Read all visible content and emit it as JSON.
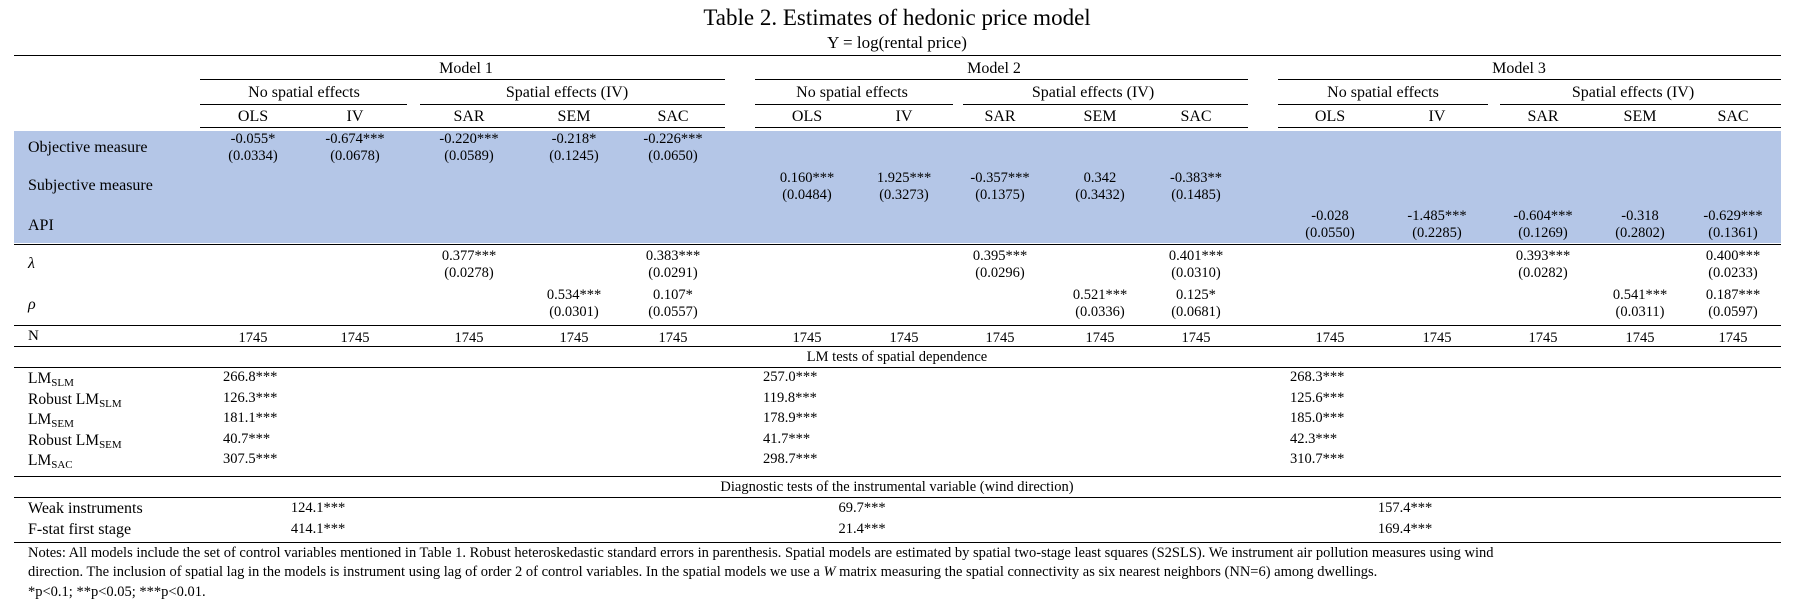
{
  "title": "Table 2. Estimates of hedonic price model",
  "subtitle": "Y = log(rental price)",
  "models": [
    {
      "name": "Model 1",
      "groups": [
        "No spatial effects",
        "Spatial effects (IV)"
      ]
    },
    {
      "name": "Model 2",
      "groups": [
        "No spatial effects",
        "Spatial effects (IV)"
      ]
    },
    {
      "name": "Model 3",
      "groups": [
        "No spatial effects",
        "Spatial effects (IV)"
      ]
    }
  ],
  "methods": [
    "OLS",
    "IV",
    "SAR",
    "SEM",
    "SAC",
    "OLS",
    "IV",
    "SAR",
    "SEM",
    "SAC",
    "OLS",
    "IV",
    "SAR",
    "SEM",
    "SAC"
  ],
  "rows": [
    {
      "label": "Objective measure",
      "cells": [
        [
          "-0.055*",
          "(0.0334)"
        ],
        [
          "-0.674***",
          "(0.0678)"
        ],
        [
          "-0.220***",
          "(0.0589)"
        ],
        [
          "-0.218*",
          "(0.1245)"
        ],
        [
          "-0.226***",
          "(0.0650)"
        ],
        null,
        null,
        null,
        null,
        null,
        null,
        null,
        null,
        null,
        null
      ]
    },
    {
      "label": "Subjective measure",
      "cells": [
        null,
        null,
        null,
        null,
        null,
        [
          "0.160***",
          "(0.0484)"
        ],
        [
          "1.925***",
          "(0.3273)"
        ],
        [
          "-0.357***",
          "(0.1375)"
        ],
        [
          "0.342",
          "(0.3432)"
        ],
        [
          "-0.383**",
          "(0.1485)"
        ],
        null,
        null,
        null,
        null,
        null
      ]
    },
    {
      "label": "API",
      "cells": [
        null,
        null,
        null,
        null,
        null,
        null,
        null,
        null,
        null,
        null,
        [
          "-0.028",
          "(0.0550)"
        ],
        [
          "-1.485***",
          "(0.2285)"
        ],
        [
          "-0.604***",
          "(0.1269)"
        ],
        [
          "-0.318",
          "(0.2802)"
        ],
        [
          "-0.629***",
          "(0.1361)"
        ]
      ]
    },
    {
      "label": "λ",
      "cells": [
        null,
        null,
        [
          "0.377***",
          "(0.0278)"
        ],
        null,
        [
          "0.383***",
          "(0.0291)"
        ],
        null,
        null,
        [
          "0.395***",
          "(0.0296)"
        ],
        null,
        [
          "0.401***",
          "(0.0310)"
        ],
        null,
        null,
        [
          "0.393***",
          "(0.0282)"
        ],
        null,
        [
          "0.400***",
          "(0.0233)"
        ]
      ]
    },
    {
      "label": "ρ",
      "cells": [
        null,
        null,
        null,
        [
          "0.534***",
          "(0.0301)"
        ],
        [
          "0.107*",
          "(0.0557)"
        ],
        null,
        null,
        null,
        [
          "0.521***",
          "(0.0336)"
        ],
        [
          "0.125*",
          "(0.0681)"
        ],
        null,
        null,
        null,
        [
          "0.541***",
          "(0.0311)"
        ],
        [
          "0.187***",
          "(0.0597)"
        ]
      ]
    }
  ],
  "n_row": {
    "label": "N",
    "values": [
      "1745",
      "1745",
      "1745",
      "1745",
      "1745",
      "1745",
      "1745",
      "1745",
      "1745",
      "1745",
      "1745",
      "1745",
      "1745",
      "1745",
      "1745"
    ]
  },
  "lm_section": {
    "heading": "LM tests of spatial dependence",
    "rows": [
      {
        "prefix": "LM",
        "sub": "SLM",
        "values": [
          "266.8***",
          "257.0***",
          "268.3***"
        ]
      },
      {
        "prefix": "Robust LM",
        "sub": "SLM",
        "values": [
          "126.3***",
          "119.8***",
          "125.6***"
        ]
      },
      {
        "prefix": "LM",
        "sub": "SEM",
        "values": [
          "181.1***",
          "178.9***",
          "185.0***"
        ]
      },
      {
        "prefix": "Robust LM",
        "sub": "SEM",
        "values": [
          "40.7***",
          "41.7***",
          "42.3***"
        ]
      },
      {
        "prefix": "LM",
        "sub": "SAC",
        "values": [
          "307.5***",
          "298.7***",
          "310.7***"
        ]
      }
    ]
  },
  "diag_section": {
    "heading": "Diagnostic tests of the instrumental variable (wind direction)",
    "rows": [
      {
        "label": "Weak instruments",
        "values": [
          "124.1***",
          "69.7***",
          "157.4***"
        ]
      },
      {
        "label": "F-stat first stage",
        "values": [
          "414.1***",
          "21.4***",
          "169.4***"
        ]
      }
    ]
  },
  "notes": {
    "line1": "Notes: All models include the set of control variables mentioned in Table 1. Robust heteroskedastic standard errors in parenthesis. Spatial models are estimated by spatial two-stage least squares (S2SLS). We instrument air pollution measures using wind",
    "line2_pre": "direction. The inclusion of spatial lag in the models is instrument using lag of order 2 of control variables. In the spatial models we use a ",
    "line2_w": "W",
    "line2_post": " matrix measuring the spatial connectivity as six nearest neighbors (NN=6) among dwellings.",
    "line3": "*p<0.1; **p<0.05; ***p<0.01."
  }
}
